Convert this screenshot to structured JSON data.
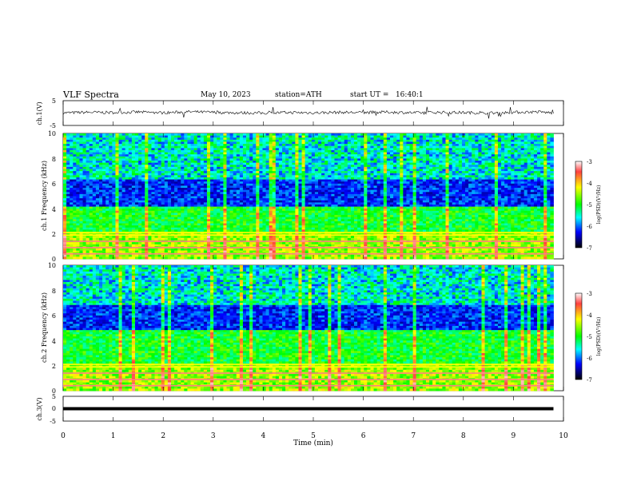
{
  "header": {
    "title": "VLF Spectra",
    "date": "May 10, 2023",
    "station": "station=ATH",
    "start": "start UT =   16:40:1"
  },
  "colorbar": {
    "label": "log(PSD)(V²/Hz)",
    "ticks": [
      "-3",
      "-4",
      "-5",
      "-6",
      "-7"
    ],
    "stops": [
      "#ffffff",
      "#ff0000",
      "#ffff00",
      "#00ff00",
      "#00ffff",
      "#0000ff",
      "#000000"
    ]
  },
  "chart_data": [
    {
      "type": "line",
      "panel": "ch1-timeseries",
      "ylabel": "ch.1(V)",
      "ylim": [
        -5,
        5
      ],
      "yticks": [
        "5",
        "-5"
      ],
      "x": [
        0,
        0.5,
        1,
        1.5,
        2,
        2.5,
        3,
        3.5,
        4,
        4.5,
        5,
        5.5,
        6,
        6.5,
        7,
        7.5,
        8,
        8.5,
        9,
        9.5,
        9.8
      ],
      "y": [
        0.1,
        0.3,
        0.2,
        0.4,
        0.1,
        0.5,
        0.3,
        0.1,
        0.0,
        0.2,
        0.1,
        0.3,
        0.2,
        0.4,
        0.1,
        0.3,
        0.2,
        0.0,
        0.3,
        0.5,
        0.0
      ]
    },
    {
      "type": "heatmap",
      "panel": "ch1-spectrogram",
      "ylabel": "ch.1 Frequency (kHz)",
      "ylim": [
        0,
        10
      ],
      "yticks": [
        "0",
        "2",
        "4",
        "6",
        "8",
        "10"
      ],
      "xlim": [
        0,
        10
      ],
      "data_extent_min": 9.8,
      "zrange": [
        -7,
        -3
      ],
      "dark_band_khz": [
        4.2,
        6.4
      ],
      "tone_lines_khz": [
        0.4,
        0.9,
        1.4,
        1.9,
        2.1
      ]
    },
    {
      "type": "heatmap",
      "panel": "ch2-spectrogram",
      "ylabel": "ch.2 Frequency (kHz)",
      "ylim": [
        0,
        10
      ],
      "yticks": [
        "0",
        "2",
        "4",
        "6",
        "8",
        "10"
      ],
      "xlim": [
        0,
        10
      ],
      "data_extent_min": 9.8,
      "zrange": [
        -7,
        -3
      ],
      "dark_band_khz": [
        4.8,
        6.8
      ],
      "tone_lines_khz": [
        0.4,
        0.9,
        1.4,
        1.9,
        2.1
      ]
    },
    {
      "type": "line",
      "panel": "ch3-timeseries",
      "ylabel": "ch.3(V)",
      "ylim": [
        -5,
        5
      ],
      "yticks": [
        "5",
        "0",
        "-5"
      ],
      "x": [
        0,
        9.8
      ],
      "y": [
        0.0,
        0.0
      ],
      "xlabel": "Time (min)",
      "xticks": [
        "0",
        "1",
        "2",
        "3",
        "4",
        "5",
        "6",
        "7",
        "8",
        "9",
        "10"
      ]
    }
  ]
}
